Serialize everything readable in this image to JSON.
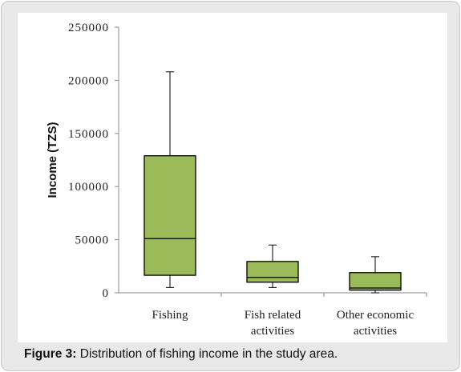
{
  "caption": {
    "label": "Figure 3:",
    "text": " Distribution of fishing income in the study area."
  },
  "chart_data": {
    "type": "boxplot",
    "ylabel": "Income (TZS)",
    "xlabel": "",
    "ylim": [
      0,
      250000
    ],
    "yticks": [
      0,
      50000,
      100000,
      150000,
      200000,
      250000
    ],
    "ytick_labels": [
      "0",
      "50000",
      "100000",
      "150000",
      "200000",
      "250000"
    ],
    "box_color": "#9bbb59",
    "box_edge_color": "#000000",
    "categories": [
      {
        "label_lines": [
          "Fishing"
        ],
        "min": 5000,
        "q1": 16500,
        "median": 51000,
        "q3": 129000,
        "max": 208000
      },
      {
        "label_lines": [
          "Fish related",
          "activities"
        ],
        "min": 5000,
        "q1": 10000,
        "median": 14500,
        "q3": 29500,
        "max": 45000
      },
      {
        "label_lines": [
          "Other economic",
          "activities"
        ],
        "min": 0,
        "q1": 2500,
        "median": 4500,
        "q3": 19000,
        "max": 34000
      }
    ],
    "grid": false,
    "legend": "none"
  }
}
